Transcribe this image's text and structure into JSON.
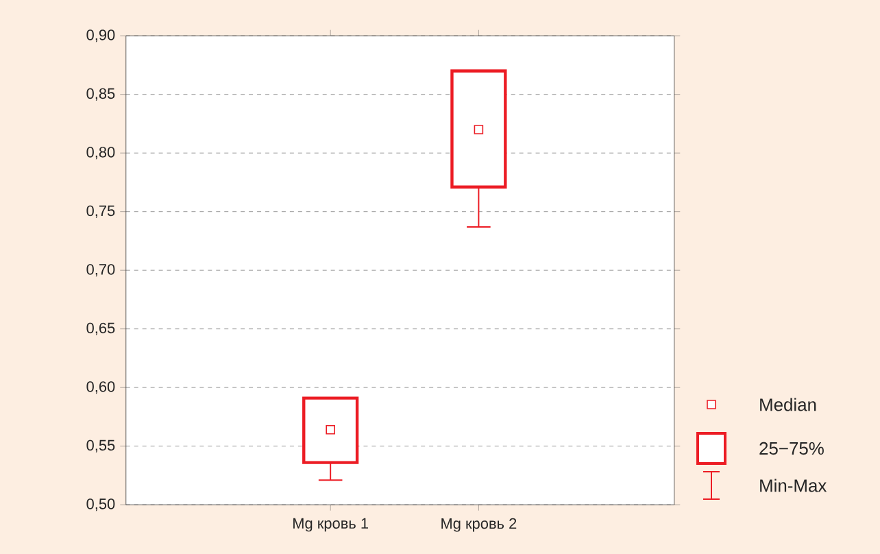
{
  "chart_data": {
    "type": "box",
    "categories": [
      "Mg кровь 1",
      "Mg кровь 2"
    ],
    "boxes": [
      {
        "low": 0.521,
        "q1": 0.536,
        "median": 0.564,
        "q3": 0.591,
        "high": 0.591
      },
      {
        "low": 0.737,
        "q1": 0.771,
        "median": 0.82,
        "q3": 0.87,
        "high": 0.87
      }
    ],
    "color": "#ec1c24",
    "ylim": [
      0.5,
      0.9
    ],
    "yticks": [
      {
        "value": 0.5,
        "label": "0,50"
      },
      {
        "value": 0.55,
        "label": "0,55"
      },
      {
        "value": 0.6,
        "label": "0,60"
      },
      {
        "value": 0.65,
        "label": "0,65"
      },
      {
        "value": 0.7,
        "label": "0,70"
      },
      {
        "value": 0.75,
        "label": "0,75"
      },
      {
        "value": 0.8,
        "label": "0,80"
      },
      {
        "value": 0.85,
        "label": "0,85"
      },
      {
        "value": 0.9,
        "label": "0,90"
      }
    ],
    "grid": "y",
    "annotations": [
      "Median",
      "25−75%",
      "Min-Max"
    ]
  }
}
